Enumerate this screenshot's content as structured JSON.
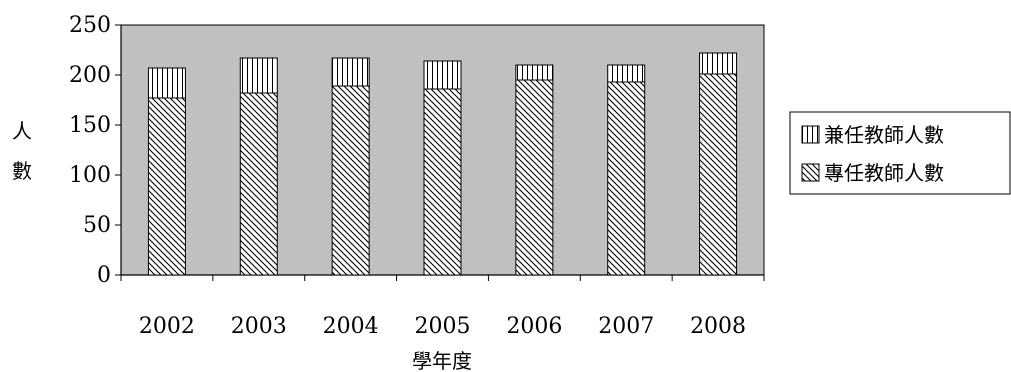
{
  "chart_data": {
    "type": "bar",
    "stacked": true,
    "categories": [
      "2002",
      "2003",
      "2004",
      "2005",
      "2006",
      "2007",
      "2008"
    ],
    "series": [
      {
        "name": "專任教師人數",
        "values": [
          177,
          182,
          189,
          186,
          195,
          193,
          201
        ],
        "pattern": "diagonal"
      },
      {
        "name": "兼任教師人數",
        "values": [
          30,
          35,
          28,
          28,
          15,
          17,
          21
        ],
        "pattern": "vertical"
      }
    ],
    "legend_order": [
      "兼任教師人數",
      "專任教師人數"
    ],
    "title": "",
    "xlabel": "學年度",
    "ylabel": "人數",
    "ylim": [
      0,
      250
    ],
    "yticks": [
      0,
      50,
      100,
      150,
      200,
      250
    ],
    "grid": false,
    "legend_position": "right",
    "plot_background": "#c0c0c0",
    "bar_fill": "#ffffff",
    "stroke_color": "#000000"
  }
}
